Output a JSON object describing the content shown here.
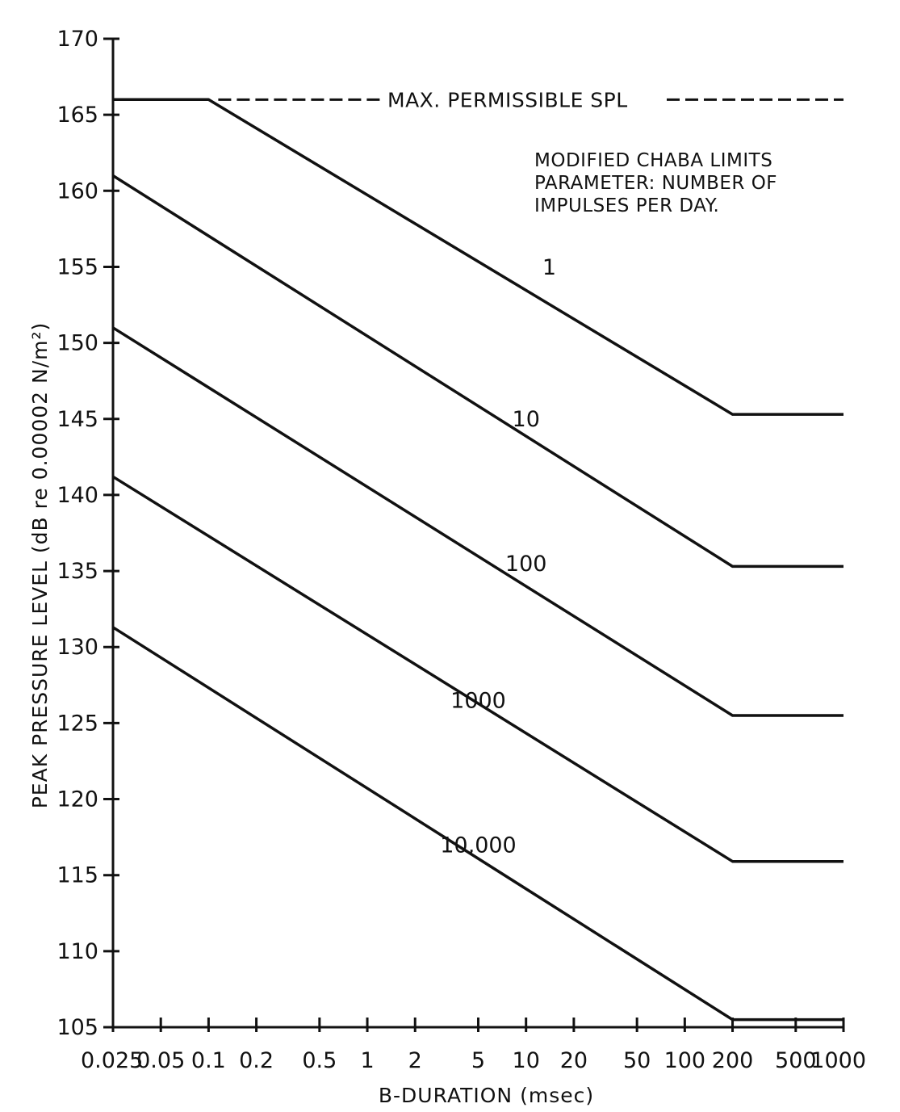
{
  "chart_data": {
    "type": "line",
    "title": "",
    "xlabel": "B-DURATION (msec)",
    "ylabel": "PEAK PRESSURE LEVEL (dB re 0.00002 N/m²)",
    "xscale": "log",
    "xlim": [
      0.025,
      1000
    ],
    "ylim": [
      105,
      170
    ],
    "x_ticks": [
      0.025,
      0.05,
      0.1,
      0.2,
      0.5,
      1,
      2,
      5,
      10,
      20,
      50,
      100,
      200,
      500,
      1000
    ],
    "x_tick_labels": [
      "0.025",
      "0.05",
      "0.1",
      "0.2",
      "0.5",
      "1",
      "2",
      "5",
      "10",
      "20",
      "50",
      "100",
      "200",
      "500",
      "1000"
    ],
    "y_ticks": [
      105,
      110,
      115,
      120,
      125,
      130,
      135,
      140,
      145,
      150,
      155,
      160,
      165,
      170
    ],
    "y_tick_labels": [
      "105",
      "110",
      "115",
      "120",
      "125",
      "130",
      "135",
      "140",
      "145",
      "150",
      "155",
      "160",
      "165",
      "170"
    ],
    "grid": false,
    "reference_line": {
      "label": "MAX. PERMISSIBLE SPL",
      "y": 166,
      "x_from": 0.1,
      "x_to": 1000,
      "style": "dashed"
    },
    "annotation": [
      "MODIFIED CHABA LIMITS",
      "PARAMETER: NUMBER OF",
      "IMPULSES PER DAY."
    ],
    "series": [
      {
        "name": "1",
        "x": [
          0.025,
          0.1,
          200,
          1000
        ],
        "y": [
          166,
          166,
          145.3,
          145.3
        ],
        "label_at": {
          "x": 14,
          "y": 154.5
        }
      },
      {
        "name": "10",
        "x": [
          0.025,
          200,
          1000
        ],
        "y": [
          161,
          135.3,
          135.3
        ],
        "label_at": {
          "x": 10,
          "y": 144.5
        }
      },
      {
        "name": "100",
        "x": [
          0.025,
          200,
          1000
        ],
        "y": [
          151,
          125.5,
          125.5
        ],
        "label_at": {
          "x": 10,
          "y": 135
        }
      },
      {
        "name": "1000",
        "x": [
          0.025,
          200,
          1000
        ],
        "y": [
          141.2,
          115.9,
          115.9
        ],
        "label_at": {
          "x": 5,
          "y": 126
        }
      },
      {
        "name": "10,000",
        "x": [
          0.025,
          200,
          1000
        ],
        "y": [
          131.3,
          105.5,
          105.5
        ],
        "label_at": {
          "x": 5,
          "y": 116.5
        }
      }
    ]
  }
}
